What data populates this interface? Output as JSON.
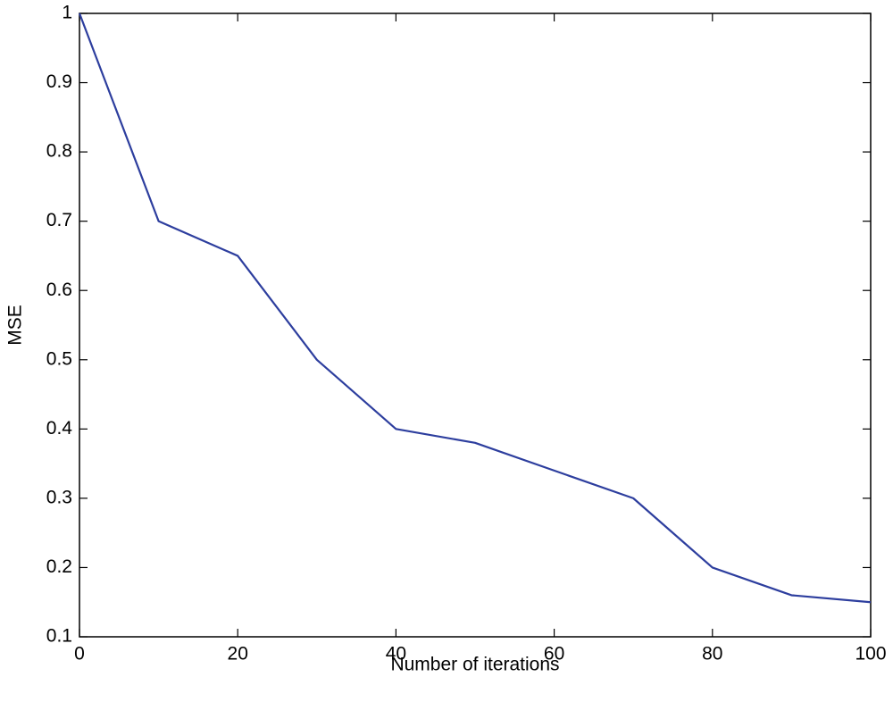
{
  "chart_data": {
    "type": "line",
    "xlabel": "Number of iterations",
    "ylabel": "MSE",
    "x": [
      0,
      10,
      20,
      30,
      40,
      50,
      60,
      70,
      80,
      90,
      100
    ],
    "values": [
      1.0,
      0.7,
      0.65,
      0.5,
      0.4,
      0.38,
      0.34,
      0.3,
      0.2,
      0.16,
      0.15
    ],
    "color": "#2d3e9e",
    "xlim": [
      0,
      100
    ],
    "xticks": [
      0,
      20,
      40,
      60,
      80,
      100
    ],
    "ylim": [
      0.1,
      1
    ],
    "yticks": [
      0.1,
      0.2,
      0.3,
      0.4,
      0.5,
      0.6,
      0.7,
      0.8,
      0.9,
      1
    ],
    "grid": false
  }
}
